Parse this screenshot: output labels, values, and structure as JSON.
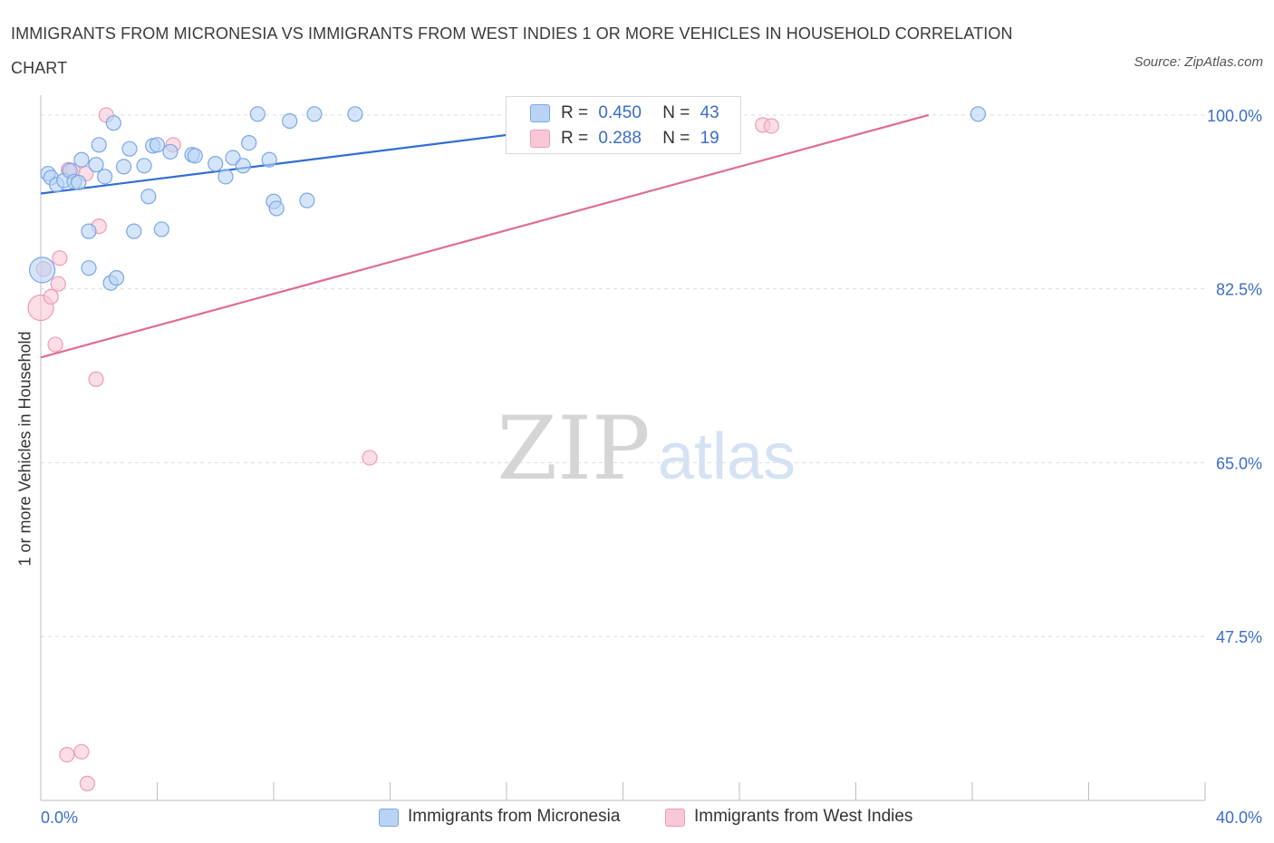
{
  "title": "IMMIGRANTS FROM MICRONESIA VS IMMIGRANTS FROM WEST INDIES 1 OR MORE VEHICLES IN HOUSEHOLD CORRELATION CHART",
  "source": "Source: ZipAtlas.com",
  "watermark": {
    "zip": "ZIP",
    "atlas": "atlas"
  },
  "legend": {
    "r_label": "R =",
    "n_label": "N =",
    "micronesia": {
      "r": "0.450",
      "n": "43"
    },
    "west_indies": {
      "r": "0.288",
      "n": "19"
    }
  },
  "colors": {
    "blue_fill": "#b9d3f5",
    "blue_stroke": "#7aa7e6",
    "blue_line": "#2f6ed1",
    "pink_fill": "#f8c8d6",
    "pink_stroke": "#ee9cb6",
    "pink_line": "#e06b94",
    "axis_label": "#3b6cc8"
  },
  "chart_data": {
    "type": "scatter",
    "title": "IMMIGRANTS FROM MICRONESIA VS IMMIGRANTS FROM WEST INDIES 1 OR MORE VEHICLES IN HOUSEHOLD CORRELATION CHART",
    "xlabel": "",
    "ylabel": "1 or more Vehicles in Household",
    "xlim": [
      0,
      40
    ],
    "ylim": [
      31,
      102
    ],
    "x_tick_labels": [
      "0.0%",
      "40.0%"
    ],
    "y_ticks": [
      100.0,
      82.5,
      65.0,
      47.5
    ],
    "y_tick_labels": [
      "100.0%",
      "82.5%",
      "65.0%",
      "47.5%"
    ],
    "grid": true,
    "legend_position": "bottom",
    "series": [
      {
        "name": "Immigrants from Micronesia",
        "color": "#b9d3f5",
        "trend": {
          "x": [
            0,
            22
          ],
          "y": [
            92.1,
            100.2
          ]
        },
        "points": [
          {
            "x": 0.05,
            "y": 84.4,
            "big": true
          },
          {
            "x": 0.25,
            "y": 94.1
          },
          {
            "x": 0.35,
            "y": 93.7
          },
          {
            "x": 0.55,
            "y": 93.0
          },
          {
            "x": 0.8,
            "y": 93.4
          },
          {
            "x": 1.0,
            "y": 94.4
          },
          {
            "x": 1.15,
            "y": 93.3
          },
          {
            "x": 1.3,
            "y": 93.2
          },
          {
            "x": 1.4,
            "y": 95.5
          },
          {
            "x": 1.65,
            "y": 88.3
          },
          {
            "x": 1.65,
            "y": 84.6
          },
          {
            "x": 1.9,
            "y": 95.0
          },
          {
            "x": 2.0,
            "y": 97.0
          },
          {
            "x": 2.2,
            "y": 93.8
          },
          {
            "x": 2.4,
            "y": 83.1
          },
          {
            "x": 2.5,
            "y": 99.2
          },
          {
            "x": 2.6,
            "y": 83.6
          },
          {
            "x": 2.85,
            "y": 94.8
          },
          {
            "x": 3.05,
            "y": 96.6
          },
          {
            "x": 3.2,
            "y": 88.3
          },
          {
            "x": 3.55,
            "y": 94.9
          },
          {
            "x": 3.7,
            "y": 91.8
          },
          {
            "x": 3.85,
            "y": 96.9
          },
          {
            "x": 4.0,
            "y": 97.0
          },
          {
            "x": 4.15,
            "y": 88.5
          },
          {
            "x": 4.45,
            "y": 96.3
          },
          {
            "x": 5.2,
            "y": 96.0
          },
          {
            "x": 5.3,
            "y": 95.9
          },
          {
            "x": 6.0,
            "y": 95.1
          },
          {
            "x": 6.35,
            "y": 93.8
          },
          {
            "x": 6.6,
            "y": 95.7
          },
          {
            "x": 6.95,
            "y": 94.9
          },
          {
            "x": 7.15,
            "y": 97.2
          },
          {
            "x": 7.45,
            "y": 100.1
          },
          {
            "x": 7.85,
            "y": 95.5
          },
          {
            "x": 8.0,
            "y": 91.3
          },
          {
            "x": 8.1,
            "y": 90.6
          },
          {
            "x": 8.55,
            "y": 99.4
          },
          {
            "x": 9.15,
            "y": 91.4
          },
          {
            "x": 9.4,
            "y": 100.1
          },
          {
            "x": 10.8,
            "y": 100.1
          },
          {
            "x": 18.65,
            "y": 100.2
          },
          {
            "x": 32.2,
            "y": 100.1
          }
        ]
      },
      {
        "name": "Immigrants from West Indies",
        "color": "#f8c8d6",
        "trend": {
          "x": [
            0,
            30.5
          ],
          "y": [
            75.6,
            100.0
          ]
        },
        "points": [
          {
            "x": 0.0,
            "y": 80.6,
            "big": true
          },
          {
            "x": 0.1,
            "y": 84.5
          },
          {
            "x": 0.35,
            "y": 81.7
          },
          {
            "x": 0.5,
            "y": 76.9
          },
          {
            "x": 0.6,
            "y": 83.0
          },
          {
            "x": 0.65,
            "y": 85.6
          },
          {
            "x": 0.9,
            "y": 35.6
          },
          {
            "x": 0.95,
            "y": 94.5
          },
          {
            "x": 1.1,
            "y": 94.4
          },
          {
            "x": 1.4,
            "y": 35.9
          },
          {
            "x": 1.55,
            "y": 94.1
          },
          {
            "x": 1.6,
            "y": 32.7
          },
          {
            "x": 1.9,
            "y": 73.4
          },
          {
            "x": 2.0,
            "y": 88.8
          },
          {
            "x": 2.25,
            "y": 100.0
          },
          {
            "x": 4.55,
            "y": 97.0
          },
          {
            "x": 11.3,
            "y": 65.5
          },
          {
            "x": 24.8,
            "y": 99.0
          },
          {
            "x": 25.1,
            "y": 98.9
          }
        ]
      }
    ]
  }
}
